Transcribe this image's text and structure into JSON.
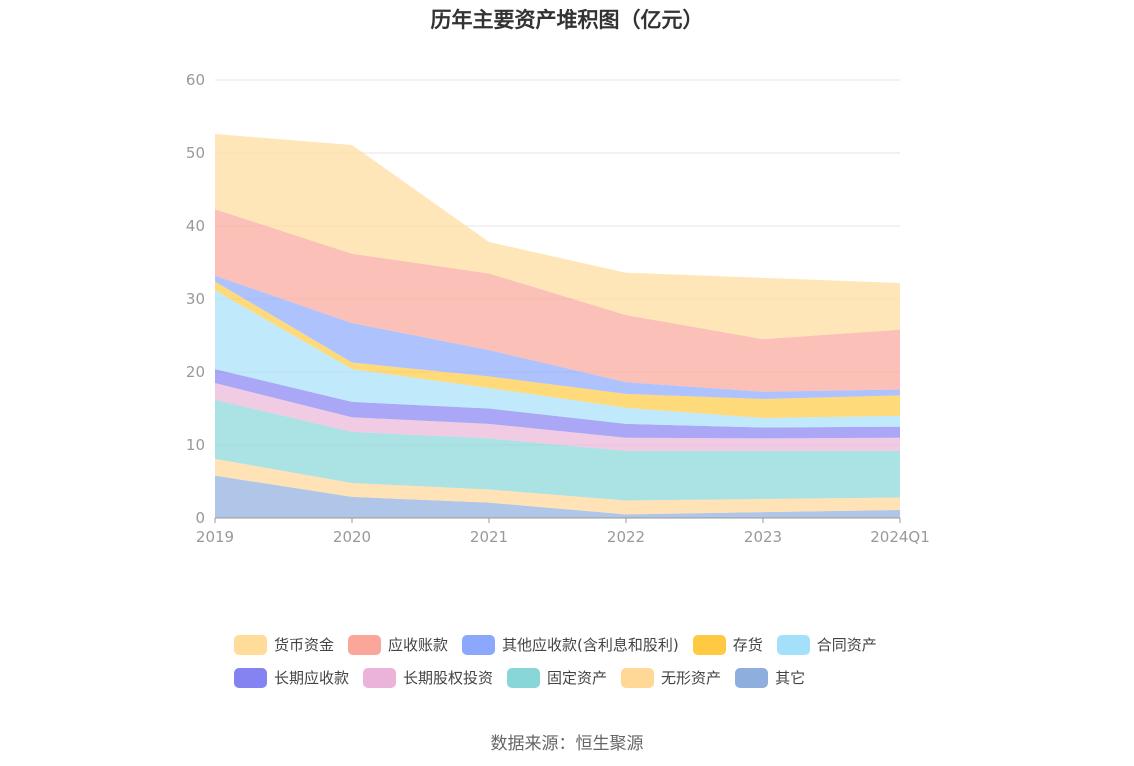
{
  "source_note": "数据来源：恒生聚源",
  "chart_data": {
    "type": "area",
    "stacked": true,
    "title": "历年主要资产堆积图（亿元）",
    "xlabel": "",
    "ylabel": "",
    "categories": [
      "2019",
      "2020",
      "2021",
      "2022",
      "2023",
      "2024Q1"
    ],
    "ylim": [
      0,
      60
    ],
    "yticks": [
      0,
      10,
      20,
      30,
      40,
      50,
      60
    ],
    "grid": true,
    "legend_position": "bottom",
    "series": [
      {
        "name": "其它",
        "color": "#8eaede",
        "values": [
          5.8,
          2.9,
          2.1,
          0.5,
          0.8,
          1.1
        ]
      },
      {
        "name": "无形资产",
        "color": "#ffd797",
        "values": [
          2.3,
          1.9,
          1.8,
          1.9,
          1.8,
          1.7
        ]
      },
      {
        "name": "固定资产",
        "color": "#88d6d8",
        "values": [
          8.1,
          7.0,
          7.0,
          6.8,
          6.6,
          6.4
        ]
      },
      {
        "name": "长期股权投资",
        "color": "#ebb3d9",
        "values": [
          2.3,
          2.0,
          2.0,
          1.8,
          1.7,
          1.8
        ]
      },
      {
        "name": "长期应收款",
        "color": "#8582f2",
        "values": [
          1.9,
          2.1,
          2.1,
          1.9,
          1.5,
          1.5
        ]
      },
      {
        "name": "合同资产",
        "color": "#a5e0fb",
        "values": [
          10.8,
          4.5,
          2.8,
          2.2,
          1.3,
          1.5
        ]
      },
      {
        "name": "存货",
        "color": "#ffca41",
        "values": [
          1.2,
          0.9,
          1.6,
          1.9,
          2.6,
          2.8
        ]
      },
      {
        "name": "其他应收款(含利息和股利)",
        "color": "#8ca8fd",
        "values": [
          0.8,
          5.4,
          3.6,
          1.6,
          1.0,
          0.8
        ]
      },
      {
        "name": "应收账款",
        "color": "#faa69a",
        "values": [
          9.1,
          9.5,
          10.5,
          9.2,
          7.2,
          8.2
        ]
      },
      {
        "name": "货币资金",
        "color": "#ffdc9a",
        "values": [
          10.3,
          14.9,
          4.3,
          5.8,
          8.4,
          6.4
        ]
      }
    ]
  }
}
